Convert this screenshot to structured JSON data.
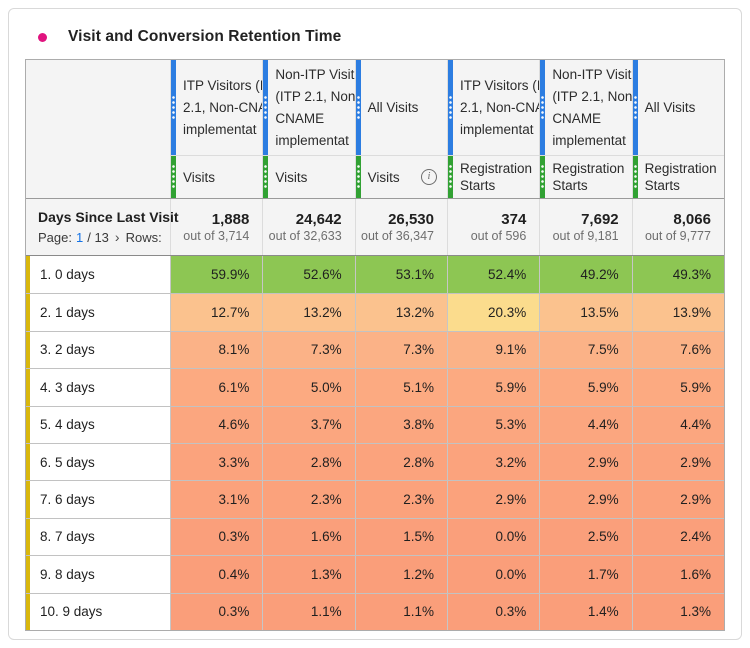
{
  "panel": {
    "title": "Visit and Conversion Retention Time"
  },
  "colors": {
    "panel_accent": "#e0147f",
    "segment_bar": "#2c7de1",
    "metric_bar": "#31a133",
    "dimension_bar": "#d9b70c",
    "link_blue": "#1473e6"
  },
  "table": {
    "segments": [
      {
        "lines": [
          "ITP Visitors (I",
          "2.1, Non-CNA",
          "implementat"
        ]
      },
      {
        "lines": [
          "Non-ITP Visit",
          "(ITP 2.1, Non-",
          "CNAME",
          "implementat"
        ]
      },
      {
        "lines": [
          "All Visits"
        ]
      },
      {
        "lines": [
          "ITP Visitors (I",
          "2.1, Non-CNA",
          "implementat"
        ]
      },
      {
        "lines": [
          "Non-ITP Visit",
          "(ITP 2.1, Non-",
          "CNAME",
          "implementat"
        ]
      },
      {
        "lines": [
          "All Visits"
        ]
      }
    ],
    "metrics": [
      {
        "lines": [
          "Visits"
        ],
        "info": false
      },
      {
        "lines": [
          "Visits"
        ],
        "info": false
      },
      {
        "lines": [
          "Visits"
        ],
        "info": true
      },
      {
        "lines": [
          "Registration",
          "Starts"
        ],
        "info": false
      },
      {
        "lines": [
          "Registration",
          "Starts"
        ],
        "info": false
      },
      {
        "lines": [
          "Registration",
          "Starts"
        ],
        "info": false
      }
    ],
    "dimension": {
      "title": "Days Since Last Visit",
      "page_label": "Page:",
      "page_current": "1",
      "page_total": "/ 13",
      "next_icon": "›",
      "rows_label": "Rows:"
    },
    "totals": [
      {
        "value": "1,888",
        "out_of": "out of 3,714"
      },
      {
        "value": "24,642",
        "out_of": "out of 32,633"
      },
      {
        "value": "26,530",
        "out_of": "out of 36,347"
      },
      {
        "value": "374",
        "out_of": "out of 596"
      },
      {
        "value": "7,692",
        "out_of": "out of 9,181"
      },
      {
        "value": "8,066",
        "out_of": "out of 9,777"
      }
    ],
    "rows": [
      {
        "label": "1. 0 days",
        "cells": [
          {
            "value": "59.9%",
            "color": "#8dc653"
          },
          {
            "value": "52.6%",
            "color": "#8dc653"
          },
          {
            "value": "53.1%",
            "color": "#8dc653"
          },
          {
            "value": "52.4%",
            "color": "#8dc653"
          },
          {
            "value": "49.2%",
            "color": "#8dc653"
          },
          {
            "value": "49.3%",
            "color": "#8dc653"
          }
        ]
      },
      {
        "label": "2. 1 days",
        "cells": [
          {
            "value": "12.7%",
            "color": "#fbc28e"
          },
          {
            "value": "13.2%",
            "color": "#fbc28e"
          },
          {
            "value": "13.2%",
            "color": "#fbc28e"
          },
          {
            "value": "20.3%",
            "color": "#fbdc8d"
          },
          {
            "value": "13.5%",
            "color": "#fbc28e"
          },
          {
            "value": "13.9%",
            "color": "#fbc28e"
          }
        ]
      },
      {
        "label": "3. 2 days",
        "cells": [
          {
            "value": "8.1%",
            "color": "#fbb287"
          },
          {
            "value": "7.3%",
            "color": "#fbb287"
          },
          {
            "value": "7.3%",
            "color": "#fbb287"
          },
          {
            "value": "9.1%",
            "color": "#fbb287"
          },
          {
            "value": "7.5%",
            "color": "#fbb287"
          },
          {
            "value": "7.6%",
            "color": "#fbb287"
          }
        ]
      },
      {
        "label": "4. 3 days",
        "cells": [
          {
            "value": "6.1%",
            "color": "#fcaa81"
          },
          {
            "value": "5.0%",
            "color": "#fcaa81"
          },
          {
            "value": "5.1%",
            "color": "#fcaa81"
          },
          {
            "value": "5.9%",
            "color": "#fcaa81"
          },
          {
            "value": "5.9%",
            "color": "#fcaa81"
          },
          {
            "value": "5.9%",
            "color": "#fcaa81"
          }
        ]
      },
      {
        "label": "5. 4 days",
        "cells": [
          {
            "value": "4.6%",
            "color": "#fba67f"
          },
          {
            "value": "3.7%",
            "color": "#fba67f"
          },
          {
            "value": "3.8%",
            "color": "#fba67f"
          },
          {
            "value": "5.3%",
            "color": "#fba67f"
          },
          {
            "value": "4.4%",
            "color": "#fba67f"
          },
          {
            "value": "4.4%",
            "color": "#fba67f"
          }
        ]
      },
      {
        "label": "6. 5 days",
        "cells": [
          {
            "value": "3.3%",
            "color": "#fba37d"
          },
          {
            "value": "2.8%",
            "color": "#fba37d"
          },
          {
            "value": "2.8%",
            "color": "#fba37d"
          },
          {
            "value": "3.2%",
            "color": "#fba37d"
          },
          {
            "value": "2.9%",
            "color": "#fba37d"
          },
          {
            "value": "2.9%",
            "color": "#fba37d"
          }
        ]
      },
      {
        "label": "7. 6 days",
        "cells": [
          {
            "value": "3.1%",
            "color": "#fba27c"
          },
          {
            "value": "2.3%",
            "color": "#fba27c"
          },
          {
            "value": "2.3%",
            "color": "#fba27c"
          },
          {
            "value": "2.9%",
            "color": "#fba27c"
          },
          {
            "value": "2.9%",
            "color": "#fba27c"
          },
          {
            "value": "2.9%",
            "color": "#fba27c"
          }
        ]
      },
      {
        "label": "8. 7 days",
        "cells": [
          {
            "value": "0.3%",
            "color": "#fa9f7b"
          },
          {
            "value": "1.6%",
            "color": "#fa9f7b"
          },
          {
            "value": "1.5%",
            "color": "#fa9f7b"
          },
          {
            "value": "0.0%",
            "color": "#fa9f7b"
          },
          {
            "value": "2.5%",
            "color": "#fa9f7b"
          },
          {
            "value": "2.4%",
            "color": "#fa9f7b"
          }
        ]
      },
      {
        "label": "9. 8 days",
        "cells": [
          {
            "value": "0.4%",
            "color": "#fa9e7a"
          },
          {
            "value": "1.3%",
            "color": "#fa9e7a"
          },
          {
            "value": "1.2%",
            "color": "#fa9e7a"
          },
          {
            "value": "0.0%",
            "color": "#fa9e7a"
          },
          {
            "value": "1.7%",
            "color": "#fa9e7a"
          },
          {
            "value": "1.6%",
            "color": "#fa9e7a"
          }
        ]
      },
      {
        "label": "10. 9 days",
        "cells": [
          {
            "value": "0.3%",
            "color": "#fa9e7a"
          },
          {
            "value": "1.1%",
            "color": "#fa9e7a"
          },
          {
            "value": "1.1%",
            "color": "#fa9e7a"
          },
          {
            "value": "0.3%",
            "color": "#fa9e7a"
          },
          {
            "value": "1.4%",
            "color": "#fa9e7a"
          },
          {
            "value": "1.3%",
            "color": "#fa9e7a"
          }
        ]
      }
    ]
  }
}
